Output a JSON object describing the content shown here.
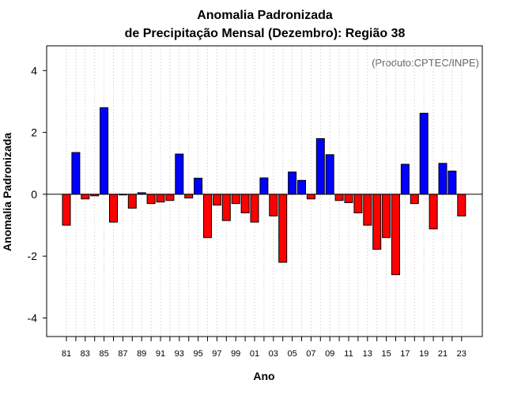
{
  "chart_data": {
    "type": "bar",
    "title_line1": "Anomalia Padronizada",
    "title_line2": "de Precipitação Mensal (Dezembro): Região 38",
    "xlabel": "Ano",
    "ylabel": "Anomalia Padronizada",
    "annotation": "(Produto:CPTEC/INPE)",
    "ylim": [
      -4.6,
      4.8
    ],
    "yticks": [
      -4,
      -2,
      0,
      2,
      4
    ],
    "ytick_labels": [
      "-4",
      "-2",
      "0",
      "2",
      "4"
    ],
    "xtick_labels": [
      "81",
      "83",
      "85",
      "87",
      "89",
      "91",
      "93",
      "95",
      "97",
      "99",
      "01",
      "03",
      "05",
      "07",
      "09",
      "11",
      "13",
      "15",
      "17",
      "19",
      "21",
      "23"
    ],
    "grid": true,
    "colors": {
      "positive": "#0000ff",
      "negative": "#ff0000",
      "grid": "#dddddd",
      "frame": "#000000"
    },
    "categories": [
      "1981",
      "1982",
      "1983",
      "1984",
      "1985",
      "1986",
      "1987",
      "1988",
      "1989",
      "1990",
      "1991",
      "1992",
      "1993",
      "1994",
      "1995",
      "1996",
      "1997",
      "1998",
      "1999",
      "2000",
      "2001",
      "2002",
      "2003",
      "2004",
      "2005",
      "2006",
      "2007",
      "2008",
      "2009",
      "2010",
      "2011",
      "2012",
      "2013",
      "2014",
      "2015",
      "2016",
      "2017",
      "2018",
      "2019",
      "2020",
      "2021",
      "2022",
      "2023"
    ],
    "values": [
      -1.0,
      1.35,
      -0.15,
      -0.05,
      2.8,
      -0.9,
      -0.02,
      -0.45,
      0.05,
      -0.3,
      -0.25,
      -0.2,
      1.3,
      -0.12,
      0.52,
      -1.4,
      -0.35,
      -0.85,
      -0.3,
      -0.6,
      -0.9,
      0.53,
      -0.7,
      -2.2,
      0.72,
      0.45,
      -0.15,
      1.8,
      1.28,
      -0.2,
      -0.27,
      -0.6,
      -1.0,
      -1.78,
      -1.4,
      -2.6,
      0.97,
      -0.3,
      2.62,
      -1.12,
      1.0,
      0.75,
      -0.7
    ]
  }
}
